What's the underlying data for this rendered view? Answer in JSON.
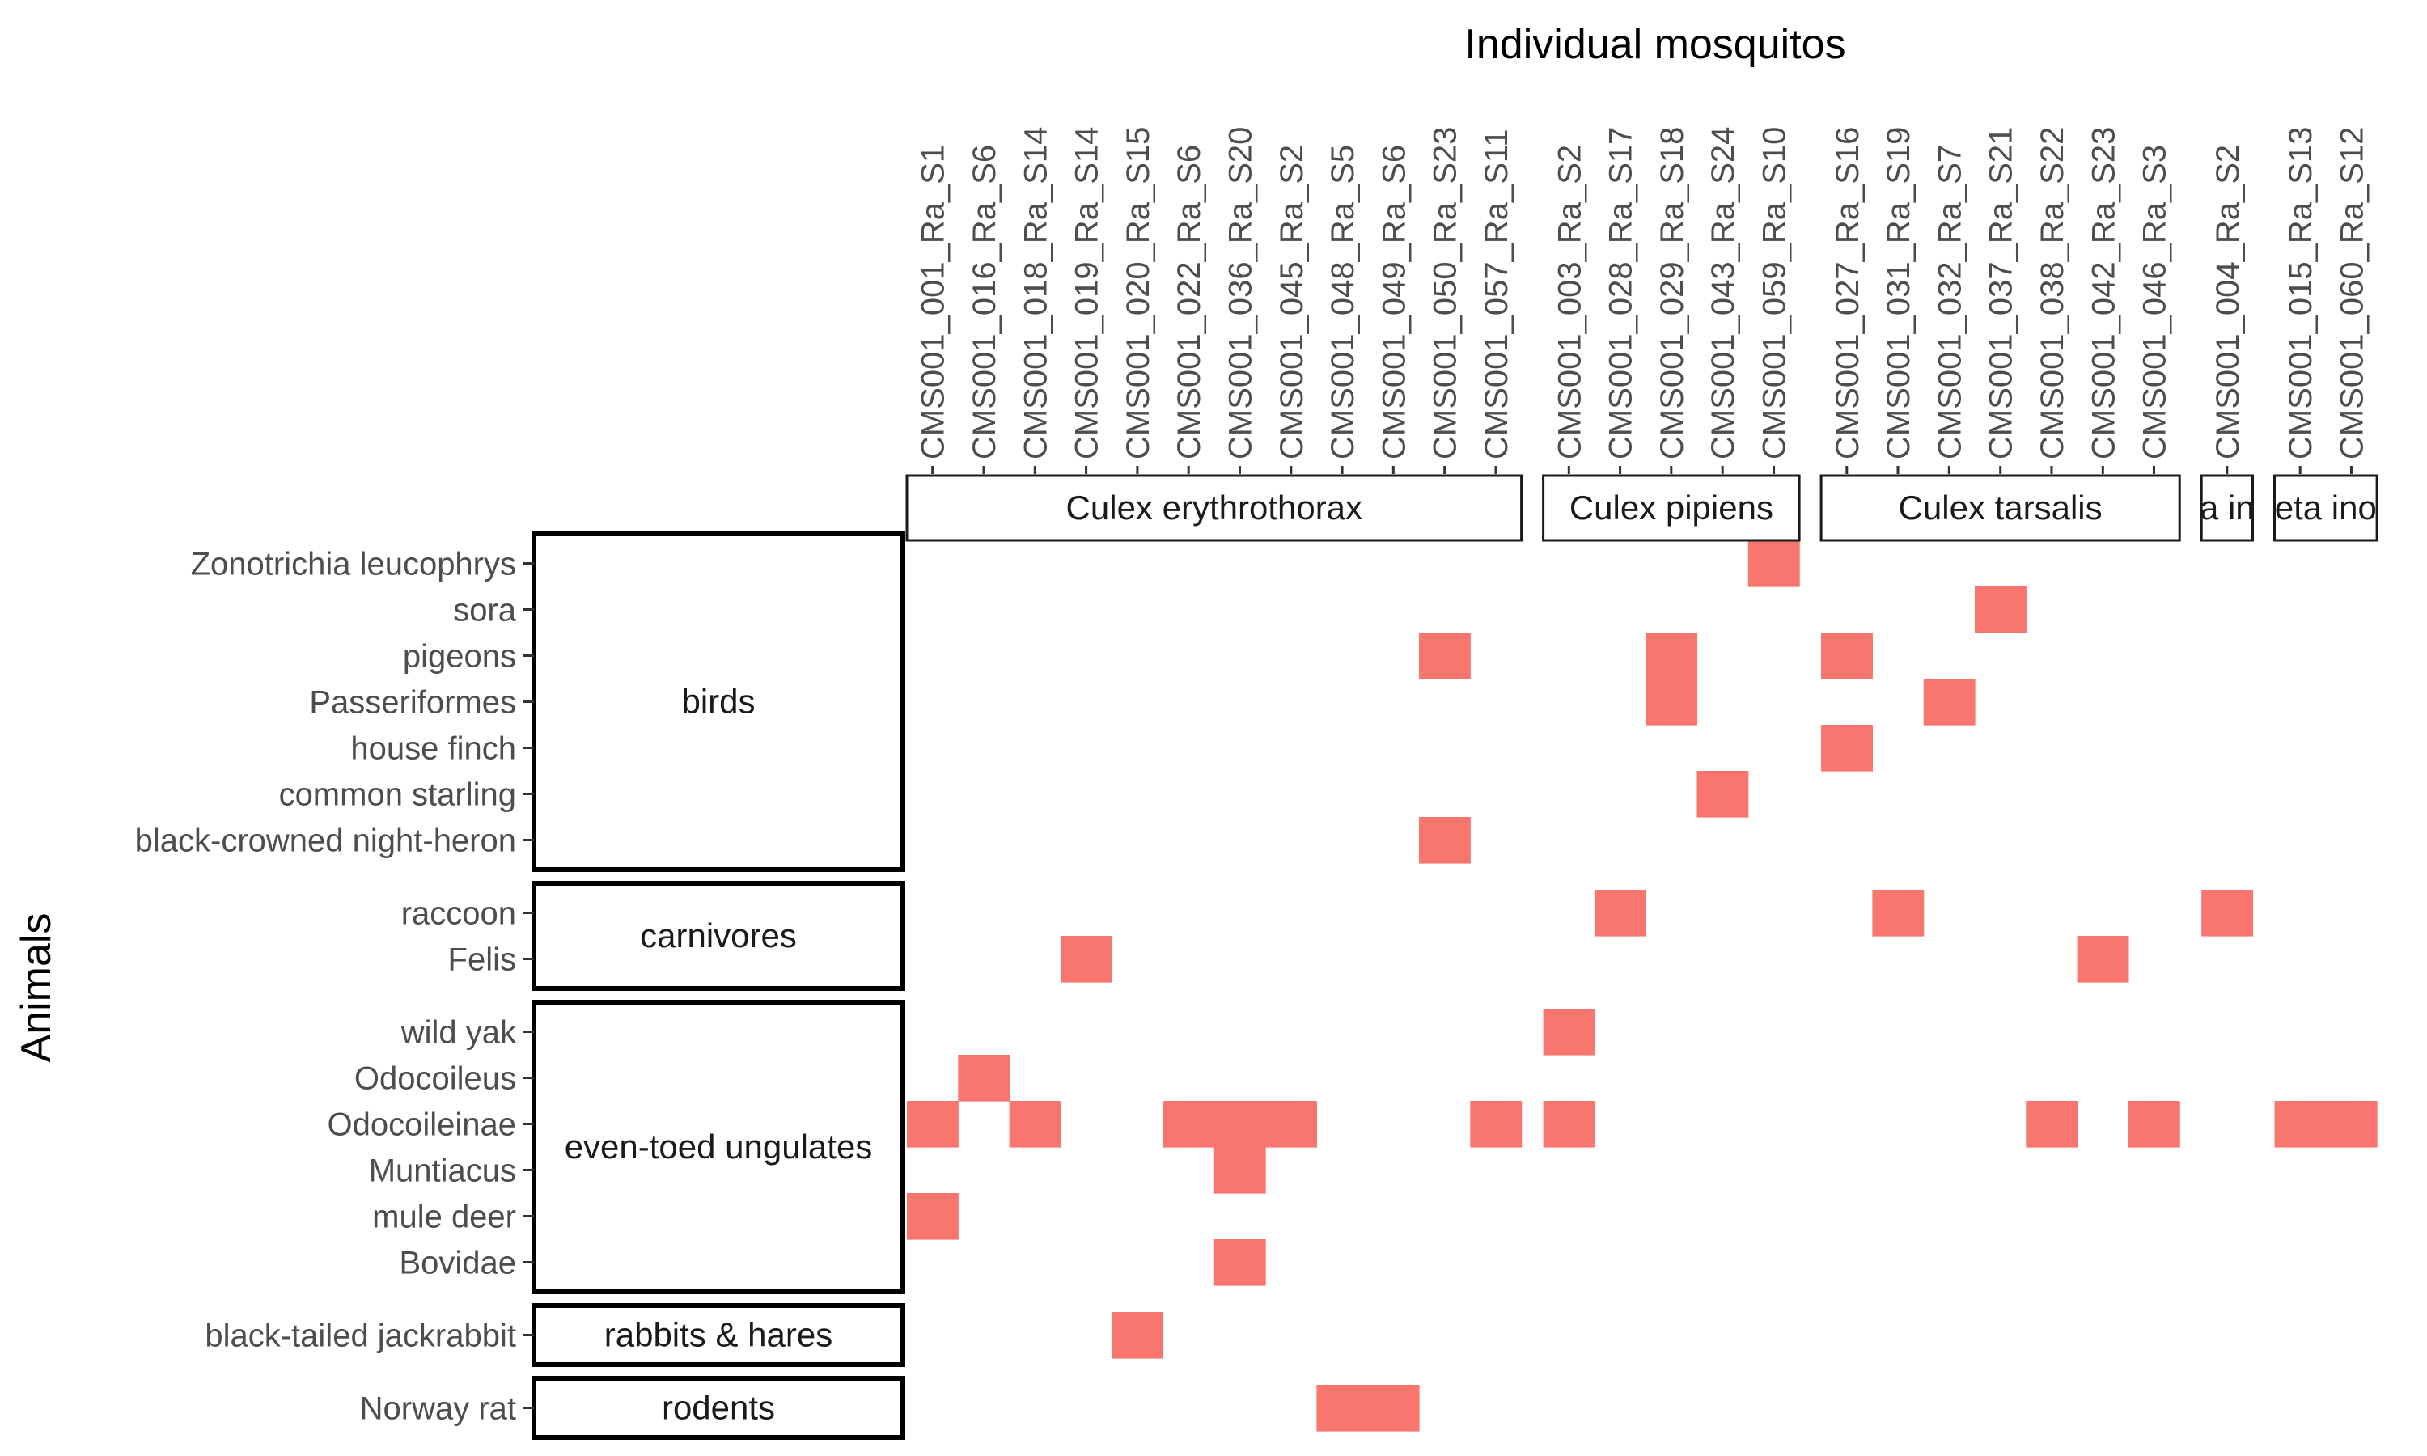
{
  "chart_data": {
    "type": "heatmap",
    "xlabel": "Individual mosquitos",
    "ylabel": "Animals",
    "fill_color": "#F8766D",
    "columns": [
      "CMS001_001_Ra_S1",
      "CMS001_016_Ra_S6",
      "CMS001_018_Ra_S14",
      "CMS001_019_Ra_S14",
      "CMS001_020_Ra_S15",
      "CMS001_022_Ra_S6",
      "CMS001_036_Ra_S20",
      "CMS001_045_Ra_S2",
      "CMS001_048_Ra_S5",
      "CMS001_049_Ra_S6",
      "CMS001_050_Ra_S23",
      "CMS001_057_Ra_S11",
      "CMS001_003_Ra_S2",
      "CMS001_028_Ra_S17",
      "CMS001_029_Ra_S18",
      "CMS001_043_Ra_S24",
      "CMS001_059_Ra_S10",
      "CMS001_027_Ra_S16",
      "CMS001_031_Ra_S19",
      "CMS001_032_Ra_S7",
      "CMS001_037_Ra_S21",
      "CMS001_038_Ra_S22",
      "CMS001_042_Ra_S23",
      "CMS001_046_Ra_S3",
      "CMS001_004_Ra_S2",
      "CMS001_015_Ra_S13",
      "CMS001_060_Ra_S12"
    ],
    "column_groups": [
      {
        "label": "Culex erythrothorax",
        "start": 0,
        "count": 12
      },
      {
        "label": "Culex pipiens",
        "start": 12,
        "count": 5
      },
      {
        "label": "Culex tarsalis",
        "start": 17,
        "count": 7
      },
      {
        "label": "a in",
        "start": 24,
        "count": 1
      },
      {
        "label": "eta ino",
        "start": 25,
        "count": 2
      }
    ],
    "rows": [
      "Zonotrichia leucophrys",
      "sora",
      "pigeons",
      "Passeriformes",
      "house finch",
      "common starling",
      "black-crowned night-heron",
      "raccoon",
      "Felis",
      "wild yak",
      "Odocoileus",
      "Odocoileinae",
      "Muntiacus",
      "mule deer",
      "Bovidae",
      "black-tailed jackrabbit",
      "Norway rat"
    ],
    "row_groups": [
      {
        "label": "birds",
        "start": 0,
        "count": 7
      },
      {
        "label": "carnivores",
        "start": 7,
        "count": 2
      },
      {
        "label": "even-toed ungulates",
        "start": 9,
        "count": 6
      },
      {
        "label": "rabbits & hares",
        "start": 15,
        "count": 1
      },
      {
        "label": "rodents",
        "start": 16,
        "count": 1
      }
    ],
    "present": [
      {
        "row": "Zonotrichia leucophrys",
        "col": "CMS001_059_Ra_S10"
      },
      {
        "row": "sora",
        "col": "CMS001_037_Ra_S21"
      },
      {
        "row": "pigeons",
        "col": "CMS001_050_Ra_S23"
      },
      {
        "row": "pigeons",
        "col": "CMS001_029_Ra_S18"
      },
      {
        "row": "pigeons",
        "col": "CMS001_027_Ra_S16"
      },
      {
        "row": "Passeriformes",
        "col": "CMS001_029_Ra_S18"
      },
      {
        "row": "Passeriformes",
        "col": "CMS001_032_Ra_S7"
      },
      {
        "row": "house finch",
        "col": "CMS001_027_Ra_S16"
      },
      {
        "row": "common starling",
        "col": "CMS001_043_Ra_S24"
      },
      {
        "row": "black-crowned night-heron",
        "col": "CMS001_050_Ra_S23"
      },
      {
        "row": "raccoon",
        "col": "CMS001_028_Ra_S17"
      },
      {
        "row": "raccoon",
        "col": "CMS001_031_Ra_S19"
      },
      {
        "row": "raccoon",
        "col": "CMS001_004_Ra_S2"
      },
      {
        "row": "Felis",
        "col": "CMS001_019_Ra_S14"
      },
      {
        "row": "Felis",
        "col": "CMS001_042_Ra_S23"
      },
      {
        "row": "wild yak",
        "col": "CMS001_003_Ra_S2"
      },
      {
        "row": "Odocoileus",
        "col": "CMS001_016_Ra_S6"
      },
      {
        "row": "Odocoileinae",
        "col": "CMS001_001_Ra_S1"
      },
      {
        "row": "Odocoileinae",
        "col": "CMS001_018_Ra_S14"
      },
      {
        "row": "Odocoileinae",
        "col": "CMS001_022_Ra_S6"
      },
      {
        "row": "Odocoileinae",
        "col": "CMS001_036_Ra_S20"
      },
      {
        "row": "Odocoileinae",
        "col": "CMS001_045_Ra_S2"
      },
      {
        "row": "Odocoileinae",
        "col": "CMS001_057_Ra_S11"
      },
      {
        "row": "Odocoileinae",
        "col": "CMS001_003_Ra_S2"
      },
      {
        "row": "Odocoileinae",
        "col": "CMS001_038_Ra_S22"
      },
      {
        "row": "Odocoileinae",
        "col": "CMS001_046_Ra_S3"
      },
      {
        "row": "Odocoileinae",
        "col": "CMS001_015_Ra_S13"
      },
      {
        "row": "Odocoileinae",
        "col": "CMS001_060_Ra_S12"
      },
      {
        "row": "Muntiacus",
        "col": "CMS001_036_Ra_S20"
      },
      {
        "row": "mule deer",
        "col": "CMS001_001_Ra_S1"
      },
      {
        "row": "Bovidae",
        "col": "CMS001_036_Ra_S20"
      },
      {
        "row": "black-tailed jackrabbit",
        "col": "CMS001_020_Ra_S15"
      },
      {
        "row": "Norway rat",
        "col": "CMS001_048_Ra_S5"
      },
      {
        "row": "Norway rat",
        "col": "CMS001_049_Ra_S6"
      }
    ],
    "legend": "none",
    "grid": false
  }
}
